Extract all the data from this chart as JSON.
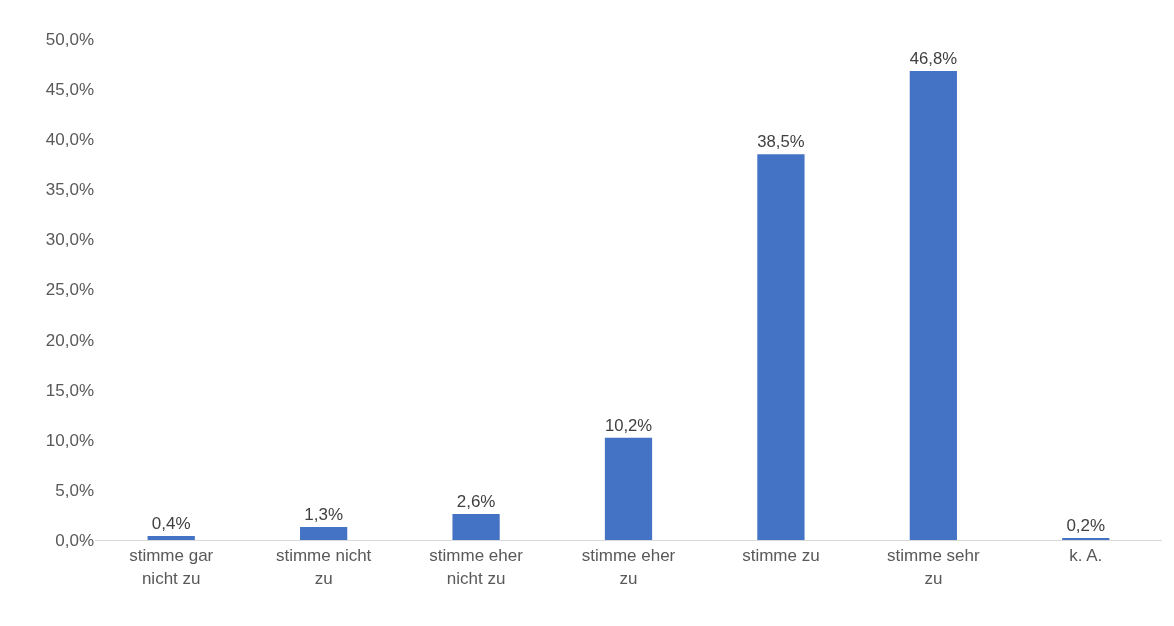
{
  "chart_data": {
    "type": "bar",
    "categories": [
      "stimme gar nicht zu",
      "stimme nicht zu",
      "stimme eher nicht zu",
      "stimme eher zu",
      "stimme zu",
      "stimme sehr zu",
      "k. A."
    ],
    "values": [
      0.4,
      1.3,
      2.6,
      10.2,
      38.5,
      46.8,
      0.2
    ],
    "value_labels": [
      "0,4%",
      "1,3%",
      "2,6%",
      "10,2%",
      "38,5%",
      "46,8%",
      "0,2%"
    ],
    "color": "#4472c4",
    "ylim": [
      0,
      50
    ],
    "yticks": [
      {
        "value": 0,
        "label": "0,0%"
      },
      {
        "value": 5,
        "label": "5,0%"
      },
      {
        "value": 10,
        "label": "10,0%"
      },
      {
        "value": 15,
        "label": "15,0%"
      },
      {
        "value": 20,
        "label": "20,0%"
      },
      {
        "value": 25,
        "label": "25,0%"
      },
      {
        "value": 30,
        "label": "30,0%"
      },
      {
        "value": 35,
        "label": "35,0%"
      },
      {
        "value": 40,
        "label": "40,0%"
      },
      {
        "value": 45,
        "label": "45,0%"
      },
      {
        "value": 50,
        "label": "50,0%"
      }
    ],
    "grid": false
  }
}
